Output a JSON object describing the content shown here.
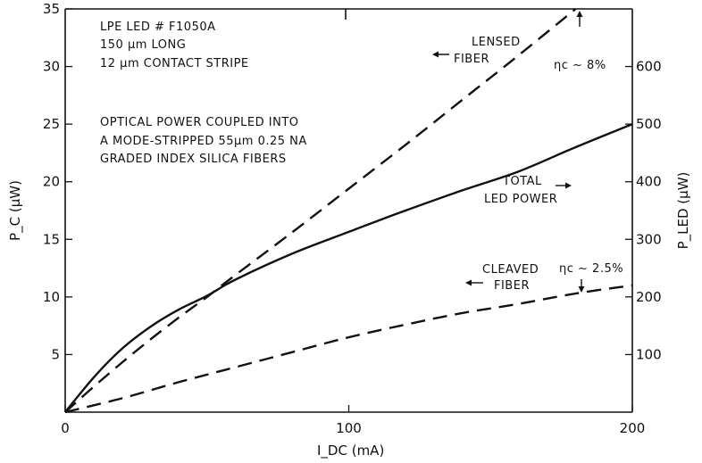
{
  "chart_data": {
    "type": "line",
    "xlabel": "I_DC (mA)",
    "ylabel": "P_C (μW)",
    "ylabel_right": "P_LED (μW)",
    "xlim": [
      0,
      200
    ],
    "ylim": [
      0,
      35
    ],
    "ylim_right": [
      0,
      700
    ],
    "x_ticks": [
      "0",
      "100",
      "200"
    ],
    "y_ticks": [
      "5",
      "10",
      "15",
      "20",
      "25",
      "30",
      "35"
    ],
    "y_ticks_right": [
      "100",
      "200",
      "300",
      "400",
      "500",
      "600"
    ],
    "grid": false,
    "annotations": {
      "device_title": "LPE LED # F1050A",
      "device_length": "150 μm LONG",
      "device_stripe": "12 μm CONTACT STRIPE",
      "coupling_line1": "OPTICAL POWER COUPLED INTO",
      "coupling_line2": "A MODE-STRIPPED 55μm 0.25 NA",
      "coupling_line3": "GRADED INDEX SILICA FIBERS",
      "lensed_line1": "LENSED",
      "lensed_line2": "FIBER",
      "total_line1": "TOTAL",
      "total_line2": "LED POWER",
      "cleaved_line1": "CLEAVED",
      "cleaved_line2": "FIBER",
      "eta_lensed": "ηc ~ 8%",
      "eta_cleaved": "ηc ~ 2.5%"
    },
    "series": [
      {
        "name": "LENSED FIBER",
        "axis": "left",
        "style": "dashed",
        "x": [
          0,
          10,
          20,
          30,
          40,
          50,
          60,
          80,
          100,
          120,
          140,
          160,
          180
        ],
        "y": [
          0,
          2.2,
          4.3,
          6.3,
          8.2,
          10.0,
          11.9,
          15.6,
          19.4,
          23.2,
          27.1,
          31.0,
          35.0
        ]
      },
      {
        "name": "TOTAL LED POWER",
        "axis": "right",
        "style": "solid",
        "x": [
          0,
          10,
          20,
          30,
          40,
          50,
          60,
          80,
          100,
          120,
          140,
          160,
          180,
          200
        ],
        "y": [
          0,
          60,
          110,
          148,
          178,
          202,
          230,
          275,
          313,
          350,
          385,
          418,
          460,
          500
        ]
      },
      {
        "name": "CLEAVED FIBER",
        "axis": "left",
        "style": "dashed",
        "x": [
          0,
          20,
          40,
          60,
          80,
          100,
          120,
          140,
          160,
          180,
          200
        ],
        "y": [
          0,
          1.2,
          2.6,
          3.9,
          5.2,
          6.5,
          7.6,
          8.6,
          9.4,
          10.3,
          11.0
        ]
      }
    ]
  }
}
